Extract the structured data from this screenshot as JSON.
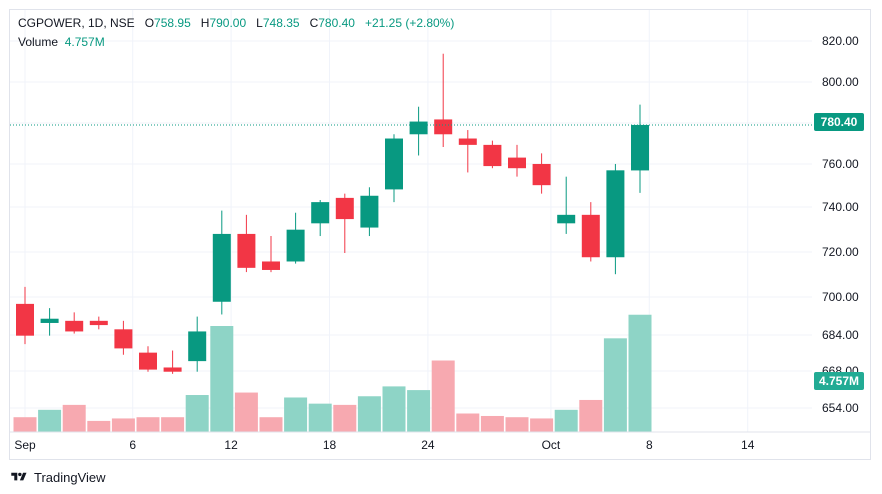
{
  "header": {
    "symbol": "CGPOWER, 1D, NSE",
    "open_label": "O",
    "open": "758.95",
    "high_label": "H",
    "high": "790.00",
    "low_label": "L",
    "low": "748.35",
    "close_label": "C",
    "close": "780.40",
    "change": "+21.25 (+2.80%)",
    "volume_label": "Volume",
    "volume": "4.757M"
  },
  "badges": {
    "last_price": "780.40",
    "last_volume": "4.757M"
  },
  "footer": {
    "brand": "TradingView"
  },
  "colors": {
    "up": "#089981",
    "down": "#f23645",
    "up_vol": "#8ed4c6",
    "down_vol": "#f7a9b0"
  },
  "chart_data": {
    "type": "candlestick",
    "y_ticks": [
      "820.00",
      "800.00",
      "780.00",
      "760.00",
      "740.00",
      "720.00",
      "700.00",
      "684.00",
      "668.00",
      "654.00"
    ],
    "x_tick_labels": [
      "Sep",
      "6",
      "12",
      "18",
      "24",
      "Oct",
      "8",
      "14"
    ],
    "candles": [
      {
        "o": 696,
        "h": 704,
        "l": 677,
        "c": 681
      },
      {
        "o": 687,
        "h": 694,
        "l": 681,
        "c": 689
      },
      {
        "o": 688,
        "h": 692,
        "l": 682,
        "c": 683
      },
      {
        "o": 688,
        "h": 690,
        "l": 684,
        "c": 686
      },
      {
        "o": 684,
        "h": 688,
        "l": 672,
        "c": 675
      },
      {
        "o": 673,
        "h": 676,
        "l": 664,
        "c": 665
      },
      {
        "o": 666,
        "h": 674,
        "l": 663,
        "c": 664
      },
      {
        "o": 669,
        "h": 690,
        "l": 664,
        "c": 683
      },
      {
        "o": 697,
        "h": 740,
        "l": 691,
        "c": 729
      },
      {
        "o": 729,
        "h": 738,
        "l": 711,
        "c": 713
      },
      {
        "o": 716,
        "h": 728,
        "l": 711,
        "c": 712
      },
      {
        "o": 716,
        "h": 739,
        "l": 715,
        "c": 731
      },
      {
        "o": 734,
        "h": 745,
        "l": 728,
        "c": 744
      },
      {
        "o": 746,
        "h": 748,
        "l": 720,
        "c": 736
      },
      {
        "o": 732,
        "h": 751,
        "l": 728,
        "c": 747
      },
      {
        "o": 750,
        "h": 776,
        "l": 744,
        "c": 774
      },
      {
        "o": 776,
        "h": 789,
        "l": 766,
        "c": 782
      },
      {
        "o": 783,
        "h": 814,
        "l": 770,
        "c": 776
      },
      {
        "o": 774,
        "h": 778,
        "l": 758,
        "c": 771
      },
      {
        "o": 771,
        "h": 773,
        "l": 760,
        "c": 761
      },
      {
        "o": 765,
        "h": 771,
        "l": 756,
        "c": 760
      },
      {
        "o": 762,
        "h": 767,
        "l": 748,
        "c": 752
      },
      {
        "o": 734,
        "h": 756,
        "l": 729,
        "c": 738
      },
      {
        "o": 738,
        "h": 744,
        "l": 716,
        "c": 718
      },
      {
        "o": 718,
        "h": 762,
        "l": 710,
        "c": 759
      },
      {
        "o": 758.95,
        "h": 790,
        "l": 748.35,
        "c": 780.4
      }
    ],
    "volumes_m": [
      0.6,
      0.9,
      1.1,
      0.45,
      0.55,
      0.6,
      0.6,
      1.5,
      4.3,
      1.6,
      0.6,
      1.4,
      1.15,
      1.1,
      1.45,
      1.85,
      1.7,
      2.9,
      0.75,
      0.65,
      0.6,
      0.55,
      0.9,
      1.3,
      3.8,
      4.757
    ]
  }
}
